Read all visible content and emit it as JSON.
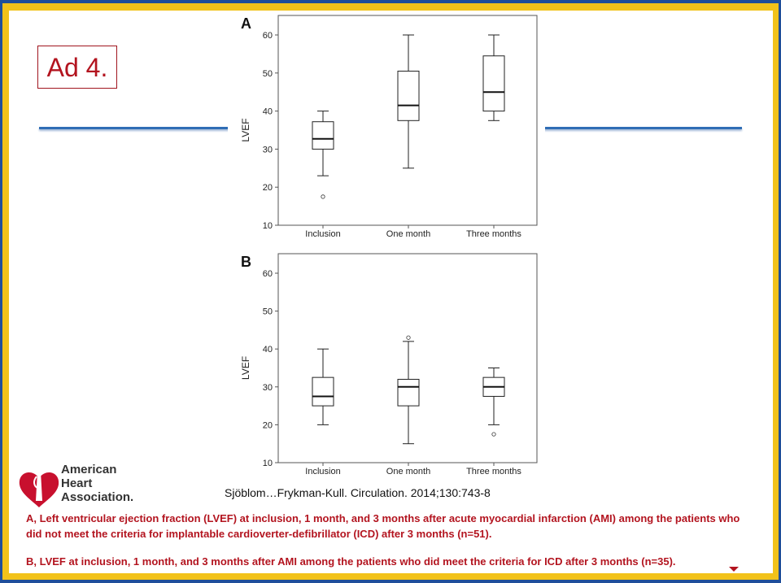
{
  "slide": {
    "title": "Ad 4.",
    "citation": "Sjöblom…Frykman-Kull. Circulation. 2014;130:743-8",
    "caption_a": "A, Left ventricular ejection fraction (LVEF) at inclusion, 1 month, and 3 months after acute myocardial infarction (AMI) among the patients who did not meet the criteria for implantable cardioverter-defibrillator (ICD) after 3 months (n=51).",
    "caption_b": "B, LVEF at inclusion, 1 month, and 3 months after AMI among the patients who did meet the criteria for ICD after 3 months (n=35).",
    "logo_lines": [
      "American",
      "Heart",
      "Association."
    ],
    "logo_icon": "heart-torch-icon",
    "colors": {
      "frame_blue": "#1f4e9a",
      "frame_gold": "#f2c21a",
      "accent_red": "#b3141f",
      "rule_blue": "#2f6db5"
    }
  },
  "chart_data": [
    {
      "type": "box",
      "panel": "A",
      "title": "",
      "xlabel": "",
      "ylabel": "LVEF",
      "ylim": [
        10,
        60
      ],
      "yticks": [
        10,
        20,
        30,
        40,
        50,
        60
      ],
      "grid": false,
      "categories": [
        "Inclusion",
        "One month",
        "Three months"
      ],
      "boxes": [
        {
          "min": 23,
          "q1": 30,
          "median": 32.7,
          "q3": 37.2,
          "max": 40,
          "outliers": [
            17.5
          ]
        },
        {
          "min": 25,
          "q1": 37.5,
          "median": 41.5,
          "q3": 50.5,
          "max": 60,
          "outliers": []
        },
        {
          "min": 37.5,
          "q1": 40,
          "median": 45,
          "q3": 54.5,
          "max": 60,
          "outliers": []
        }
      ]
    },
    {
      "type": "box",
      "panel": "B",
      "title": "",
      "xlabel": "",
      "ylabel": "LVEF",
      "ylim": [
        10,
        60
      ],
      "yticks": [
        10,
        20,
        30,
        40,
        50,
        60
      ],
      "grid": false,
      "categories": [
        "Inclusion",
        "One month",
        "Three months"
      ],
      "boxes": [
        {
          "min": 20,
          "q1": 25,
          "median": 27.5,
          "q3": 32.5,
          "max": 40,
          "outliers": []
        },
        {
          "min": 15,
          "q1": 25,
          "median": 30,
          "q3": 32,
          "max": 42,
          "outliers": [
            43
          ]
        },
        {
          "min": 20,
          "q1": 27.5,
          "median": 30,
          "q3": 32.5,
          "max": 35,
          "outliers": [
            17.5
          ]
        }
      ]
    }
  ]
}
